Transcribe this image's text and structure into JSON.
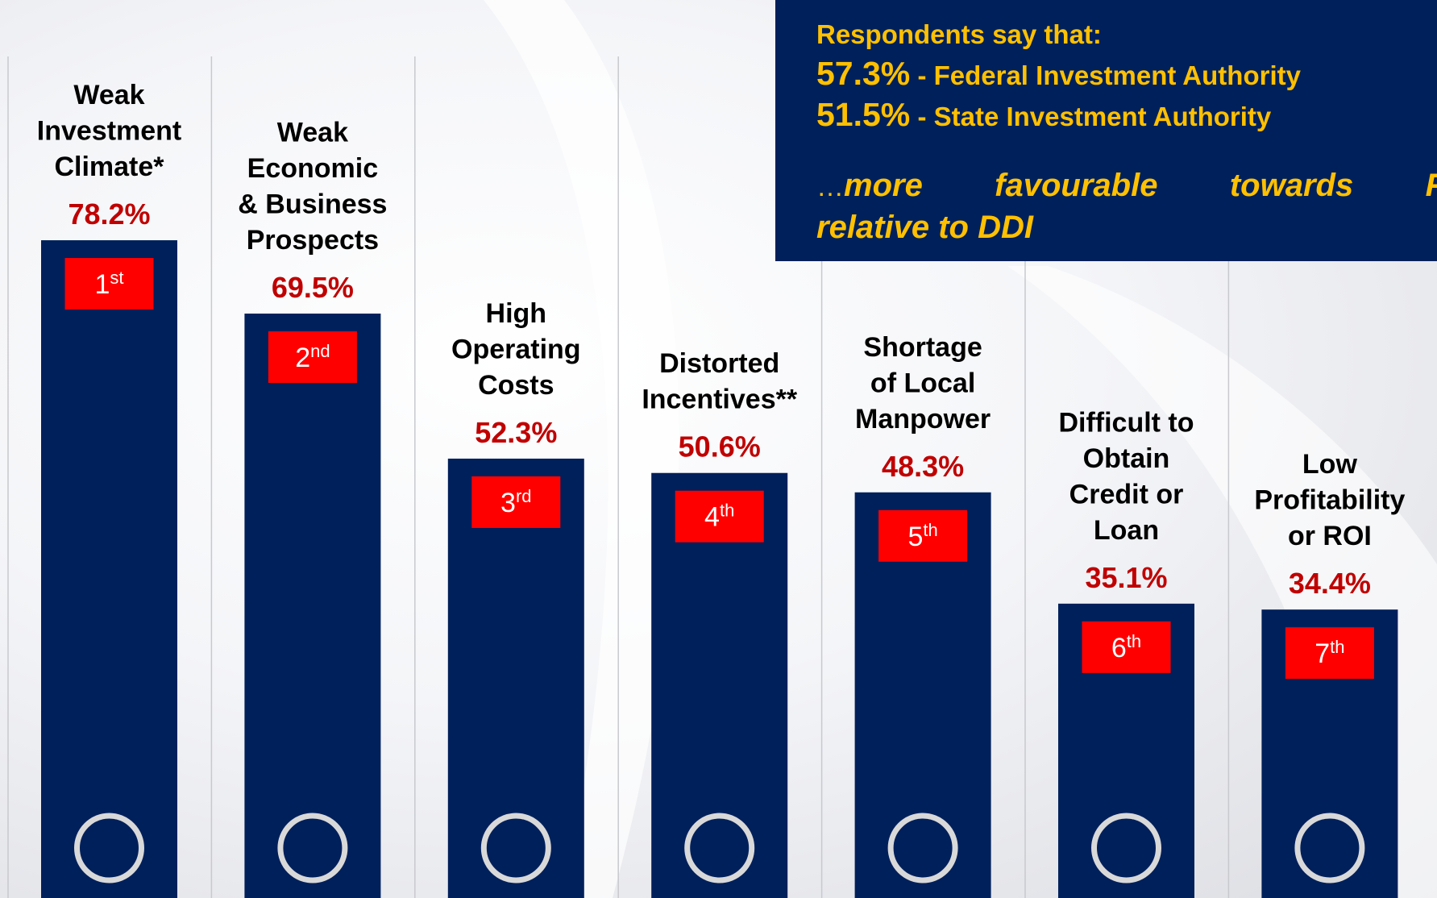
{
  "chart_data": {
    "type": "bar",
    "categories": [
      [
        "Weak",
        "Investment",
        "Climate*"
      ],
      [
        "Weak",
        "Economic",
        "& Business",
        "Prospects"
      ],
      [
        "High",
        "Operating",
        "Costs"
      ],
      [
        "Distorted",
        "Incentives**"
      ],
      [
        "Shortage",
        "of Local",
        "Manpower"
      ],
      [
        "Difficult to",
        "Obtain",
        "Credit or",
        "Loan"
      ],
      [
        "Low",
        "Profitability",
        "or ROI"
      ]
    ],
    "values": [
      78.2,
      69.5,
      52.3,
      50.6,
      48.3,
      35.1,
      34.4
    ],
    "value_labels": [
      "78.2%",
      "69.5%",
      "52.3%",
      "50.6%",
      "48.3%",
      "35.1%",
      "34.4%"
    ],
    "ranks": [
      {
        "n": "1",
        "sup": "st"
      },
      {
        "n": "2",
        "sup": "nd"
      },
      {
        "n": "3",
        "sup": "rd"
      },
      {
        "n": "4",
        "sup": "th"
      },
      {
        "n": "5",
        "sup": "th"
      },
      {
        "n": "6",
        "sup": "th"
      },
      {
        "n": "7",
        "sup": "th"
      }
    ],
    "color": "#00205b",
    "rank_color": "#ff0000",
    "value_label_color": "#c00000",
    "callout": {
      "heading": "Respondents say that:",
      "items": [
        {
          "value": "57.3%",
          "label": "- Federal Investment Authority"
        },
        {
          "value": "51.5%",
          "label": "- State Investment Authority"
        }
      ],
      "note_prefix": "…",
      "note_lines": [
        "more favourable towards FDI",
        "relative to DDI"
      ]
    }
  }
}
